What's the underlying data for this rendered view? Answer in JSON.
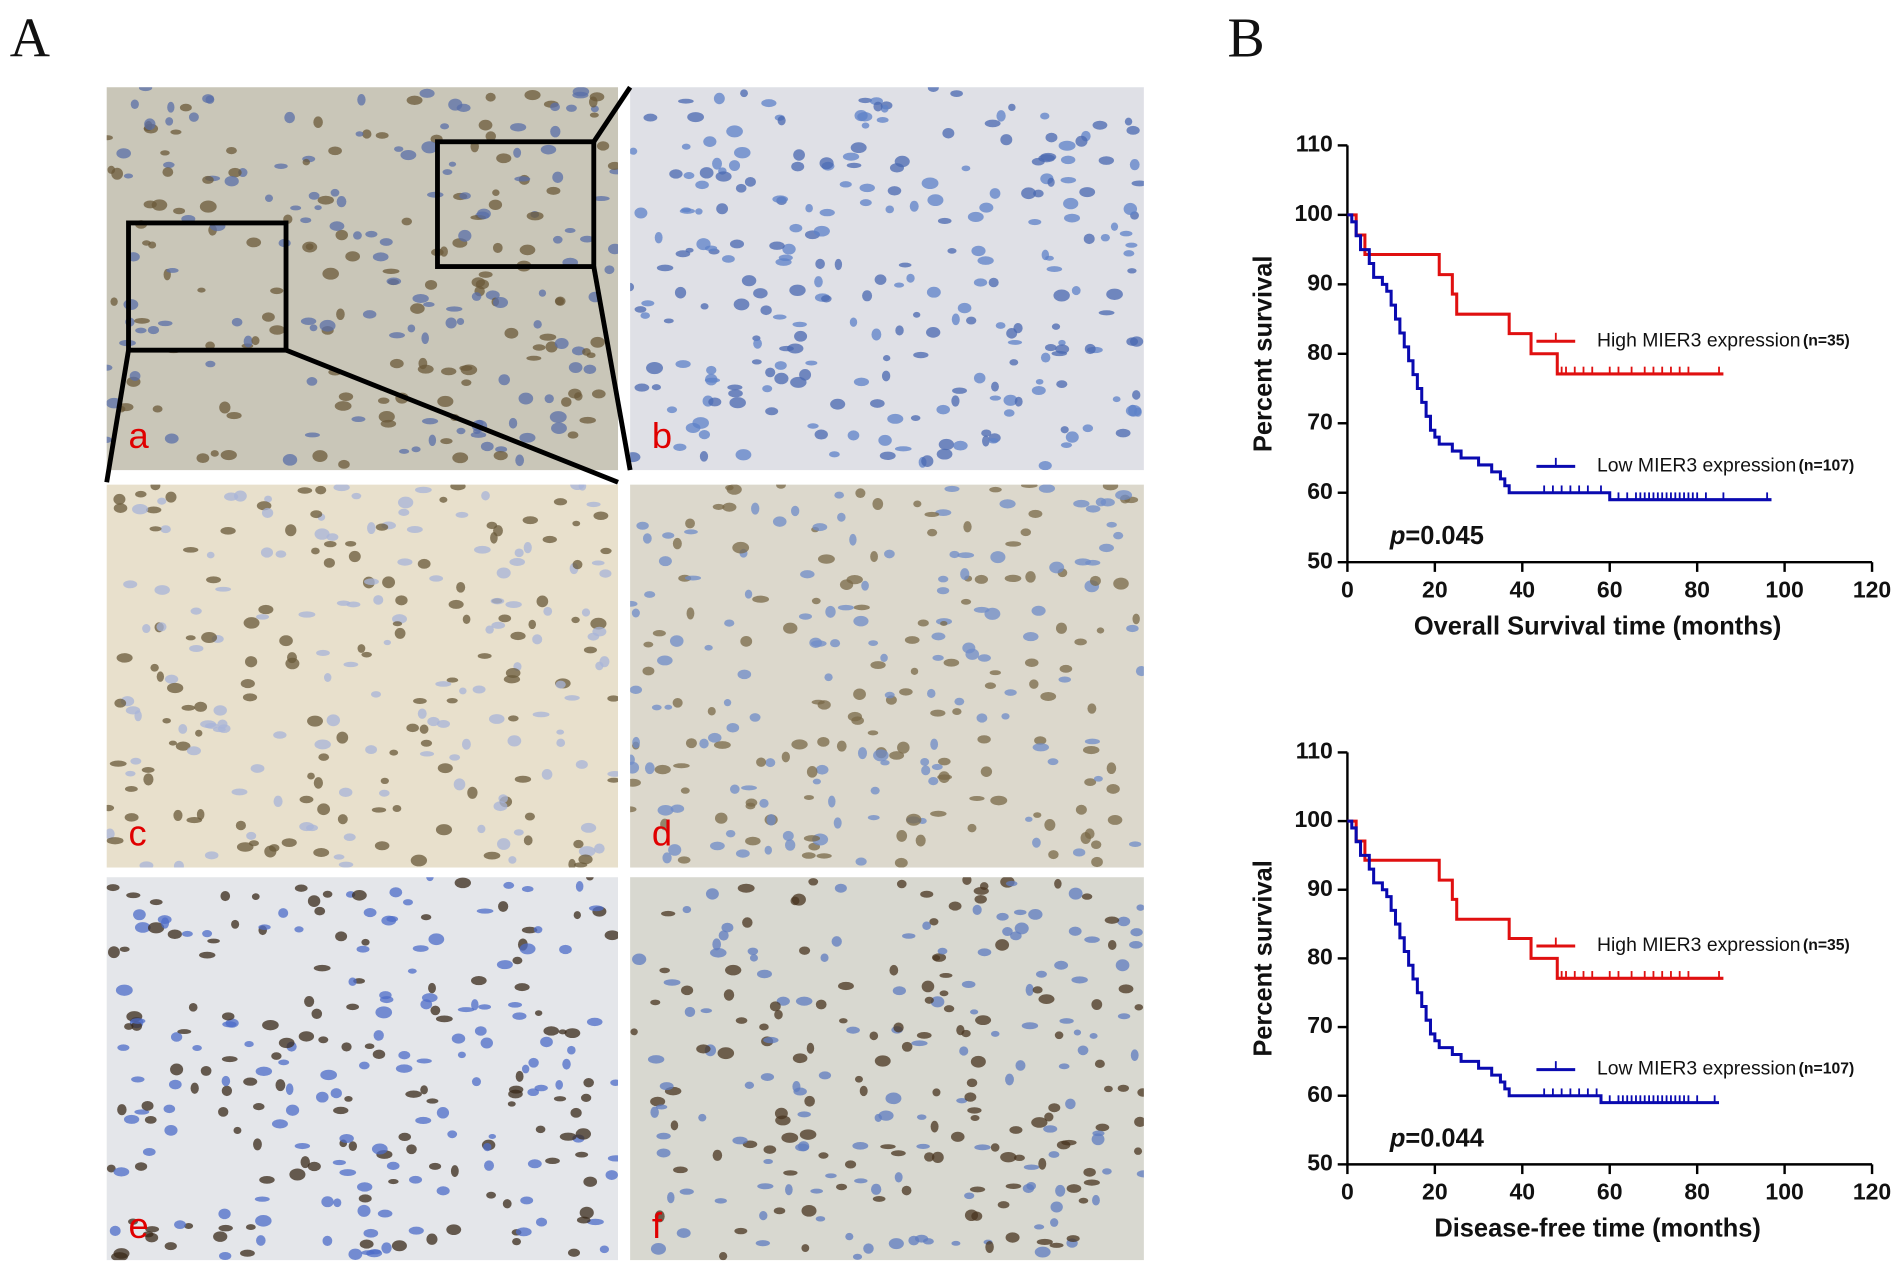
{
  "panels": {
    "A": "A",
    "B": "B",
    "images": [
      "a",
      "b",
      "c",
      "d",
      "e",
      "f"
    ]
  },
  "chart_data": [
    {
      "type": "line",
      "step": true,
      "xlabel": "Overall Survival time (months)",
      "ylabel": "Percent survival",
      "xlim": [
        0,
        120
      ],
      "xticks": [
        0,
        20,
        40,
        60,
        80,
        100,
        120
      ],
      "ylim": [
        50,
        110
      ],
      "yticks": [
        50,
        60,
        70,
        80,
        90,
        100,
        110
      ],
      "annotation": {
        "italic": "p",
        "text": "=0.045"
      },
      "series": [
        {
          "name": "High MIER3 expression",
          "n_label": "(n=35)",
          "color": "#e01010",
          "x": [
            0,
            2,
            4,
            21,
            24,
            25,
            37,
            42,
            48,
            86
          ],
          "values": [
            100,
            97.1,
            94.3,
            91.4,
            88.6,
            85.7,
            82.9,
            80,
            77.1,
            77.1
          ],
          "censored_x": [
            49,
            50,
            52,
            54,
            56,
            60,
            62,
            65,
            68,
            70,
            72,
            74,
            76,
            78,
            85
          ]
        },
        {
          "name": "Low MIER3 expression",
          "n_label": "(n=107)",
          "color": "#0a0ab0",
          "x": [
            0,
            1,
            2,
            3,
            5,
            6,
            8,
            9,
            10,
            11,
            12,
            13,
            14,
            15,
            16,
            17,
            18,
            19,
            20,
            21,
            24,
            26,
            30,
            33,
            35,
            36,
            37,
            60,
            97
          ],
          "values": [
            100,
            99,
            97,
            95,
            93,
            91,
            90,
            89,
            87,
            85,
            83,
            81,
            79,
            77,
            75,
            73,
            71,
            69,
            68,
            67,
            66,
            65,
            64,
            63,
            62,
            61,
            60,
            59,
            59
          ],
          "censored_x": [
            45,
            47,
            49,
            51,
            53,
            55,
            58,
            62,
            64,
            66,
            67,
            68,
            69,
            70,
            71,
            72,
            73,
            74,
            75,
            76,
            77,
            78,
            79,
            80,
            82,
            86,
            96
          ]
        }
      ]
    },
    {
      "type": "line",
      "step": true,
      "xlabel": "Disease-free time (months)",
      "ylabel": "Percent survival",
      "xlim": [
        0,
        120
      ],
      "xticks": [
        0,
        20,
        40,
        60,
        80,
        100,
        120
      ],
      "ylim": [
        50,
        110
      ],
      "yticks": [
        50,
        60,
        70,
        80,
        90,
        100,
        110
      ],
      "annotation": {
        "italic": "p",
        "text": "=0.044"
      },
      "series": [
        {
          "name": "High MIER3 expression",
          "n_label": "(n=35)",
          "color": "#e01010",
          "x": [
            0,
            2,
            4,
            21,
            24,
            25,
            37,
            42,
            48,
            86
          ],
          "values": [
            100,
            97.1,
            94.3,
            91.4,
            88.6,
            85.7,
            82.9,
            80,
            77.1,
            77.1
          ],
          "censored_x": [
            49,
            50,
            52,
            54,
            56,
            60,
            62,
            65,
            68,
            70,
            72,
            74,
            76,
            78,
            85
          ]
        },
        {
          "name": "Low MIER3 expression",
          "n_label": "(n=107)",
          "color": "#0a0ab0",
          "x": [
            0,
            1,
            2,
            3,
            5,
            6,
            8,
            9,
            10,
            11,
            12,
            13,
            14,
            15,
            16,
            17,
            18,
            19,
            20,
            21,
            24,
            26,
            30,
            33,
            35,
            36,
            37,
            58,
            85
          ],
          "values": [
            100,
            99,
            97,
            95,
            93,
            91,
            90,
            89,
            87,
            85,
            83,
            81,
            79,
            77,
            75,
            73,
            71,
            69,
            68,
            67,
            66,
            65,
            64,
            63,
            62,
            61,
            60,
            59,
            59
          ],
          "censored_x": [
            45,
            47,
            49,
            51,
            53,
            55,
            57,
            60,
            62,
            63,
            64,
            65,
            66,
            67,
            68,
            69,
            70,
            71,
            72,
            73,
            74,
            75,
            76,
            77,
            78,
            80,
            84
          ]
        }
      ]
    }
  ]
}
